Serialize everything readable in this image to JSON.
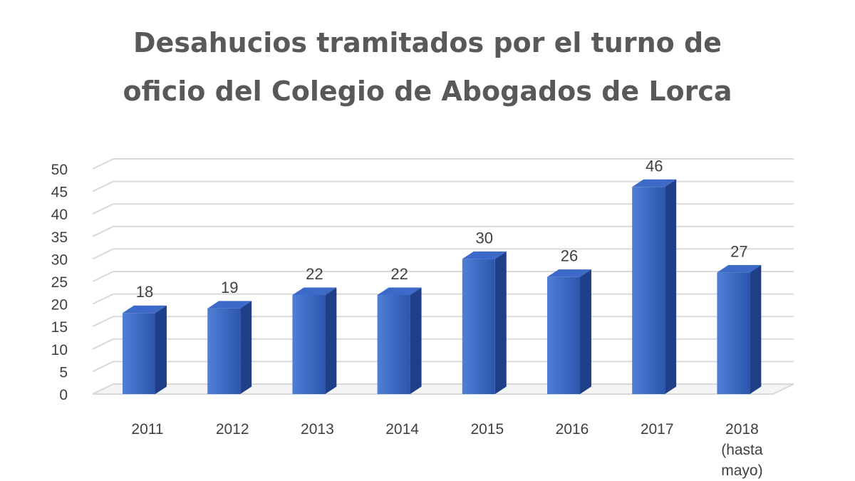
{
  "chart_data": {
    "type": "bar",
    "title_lines": [
      "Desahucios tramitados por el turno de",
      "oficio del Colegio de Abogados de Lorca"
    ],
    "categories": [
      [
        "2011"
      ],
      [
        "2012"
      ],
      [
        "2013"
      ],
      [
        "2014"
      ],
      [
        "2015"
      ],
      [
        "2016"
      ],
      [
        "2017"
      ],
      [
        "2018",
        "(hasta",
        "mayo)"
      ]
    ],
    "values": [
      18,
      19,
      22,
      22,
      30,
      26,
      46,
      27
    ],
    "data_labels": [
      "18",
      "19",
      "22",
      "22",
      "30",
      "26",
      "46",
      "27"
    ],
    "y_ticks": [
      0,
      5,
      10,
      15,
      20,
      25,
      30,
      35,
      40,
      45,
      50
    ],
    "ylim": [
      0,
      50
    ],
    "grid": true,
    "legend": "none",
    "colors": {
      "bar_front_light": "#4f7fd6",
      "bar_front_dark": "#2c56ae",
      "bar_side": "#1f3f88",
      "bar_top": "#3d6ac8",
      "grid": "#d9d9d9",
      "title": "#595959",
      "text": "#404040"
    }
  }
}
